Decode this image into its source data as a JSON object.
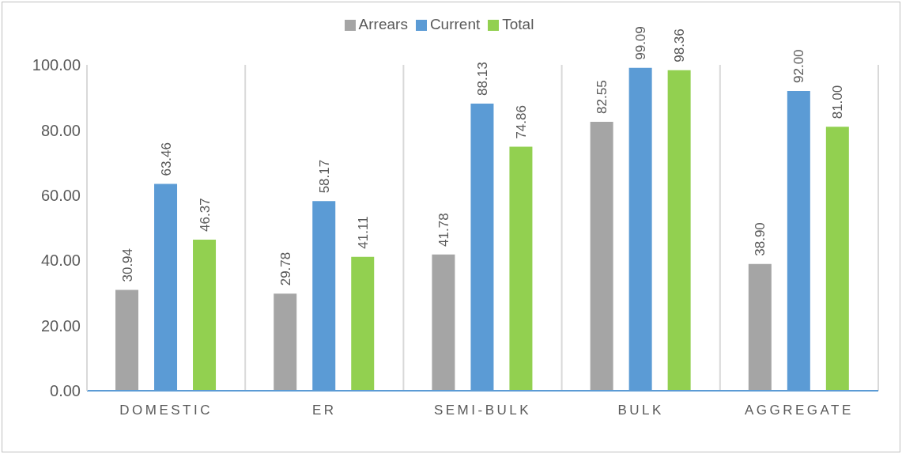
{
  "chart_data": {
    "type": "bar",
    "categories": [
      "DOMESTIC",
      "ER",
      "SEMI-BULK",
      "BULK",
      "AGGREGATE"
    ],
    "series": [
      {
        "name": "Arrears",
        "color": "#a5a5a5",
        "values": [
          30.94,
          29.78,
          41.78,
          82.55,
          38.9
        ],
        "value_labels": [
          "30.94",
          "29.78",
          "41.78",
          "82.55",
          "38.90"
        ]
      },
      {
        "name": "Current",
        "color": "#5b9bd5",
        "values": [
          63.46,
          58.17,
          88.13,
          99.09,
          92.0
        ],
        "value_labels": [
          "63.46",
          "58.17",
          "88.13",
          "99.09",
          "92.00"
        ]
      },
      {
        "name": "Total",
        "color": "#92d050",
        "values": [
          46.37,
          41.11,
          74.86,
          98.36,
          81.0
        ],
        "value_labels": [
          "46.37",
          "41.11",
          "74.86",
          "98.36",
          "81.00"
        ]
      }
    ],
    "ylim": [
      0,
      100
    ],
    "yticks": [
      {
        "value": 0,
        "label": "0.00"
      },
      {
        "value": 20,
        "label": "20.00"
      },
      {
        "value": 40,
        "label": "40.00"
      },
      {
        "value": 60,
        "label": "60.00"
      },
      {
        "value": 80,
        "label": "80.00"
      },
      {
        "value": 100,
        "label": "100.00"
      }
    ],
    "grid": "x",
    "legend": "top"
  }
}
